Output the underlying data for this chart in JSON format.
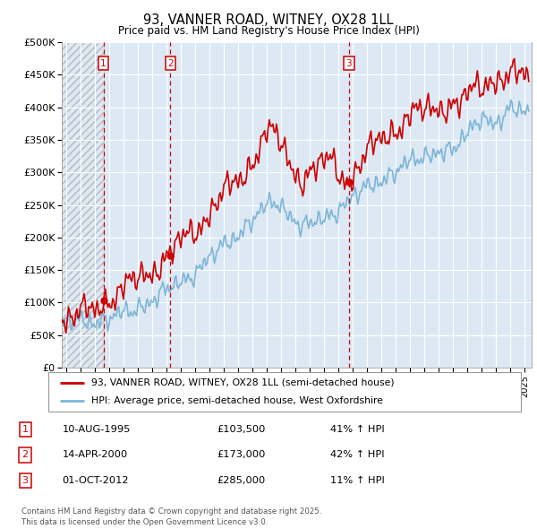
{
  "title_line1": "93, VANNER ROAD, WITNEY, OX28 1LL",
  "title_line2": "Price paid vs. HM Land Registry's House Price Index (HPI)",
  "ylim": [
    0,
    500000
  ],
  "yticks": [
    0,
    50000,
    100000,
    150000,
    200000,
    250000,
    300000,
    350000,
    400000,
    450000,
    500000
  ],
  "ytick_labels": [
    "£0",
    "£50K",
    "£100K",
    "£150K",
    "£200K",
    "£250K",
    "£300K",
    "£350K",
    "£400K",
    "£450K",
    "£500K"
  ],
  "xlim_start": 1992.7,
  "xlim_end": 2025.5,
  "sale_dates_num": [
    1995.609,
    2000.286,
    2012.748
  ],
  "sale_prices": [
    103500,
    173000,
    285000
  ],
  "sale_labels": [
    "1",
    "2",
    "3"
  ],
  "sale_date_strs": [
    "10-AUG-1995",
    "14-APR-2000",
    "01-OCT-2012"
  ],
  "sale_price_strs": [
    "£103,500",
    "£173,000",
    "£285,000"
  ],
  "sale_hpi_strs": [
    "41% ↑ HPI",
    "42% ↑ HPI",
    "11% ↑ HPI"
  ],
  "legend_line1": "93, VANNER ROAD, WITNEY, OX28 1LL (semi-detached house)",
  "legend_line2": "HPI: Average price, semi-detached house, West Oxfordshire",
  "footer_line1": "Contains HM Land Registry data © Crown copyright and database right 2025.",
  "footer_line2": "This data is licensed under the Open Government Licence v3.0.",
  "line_color_red": "#cc0000",
  "line_color_blue": "#7eb5d6",
  "background_color": "#dce9f5",
  "grid_color": "#ffffff",
  "hatch_xlim_end": 1995.609
}
